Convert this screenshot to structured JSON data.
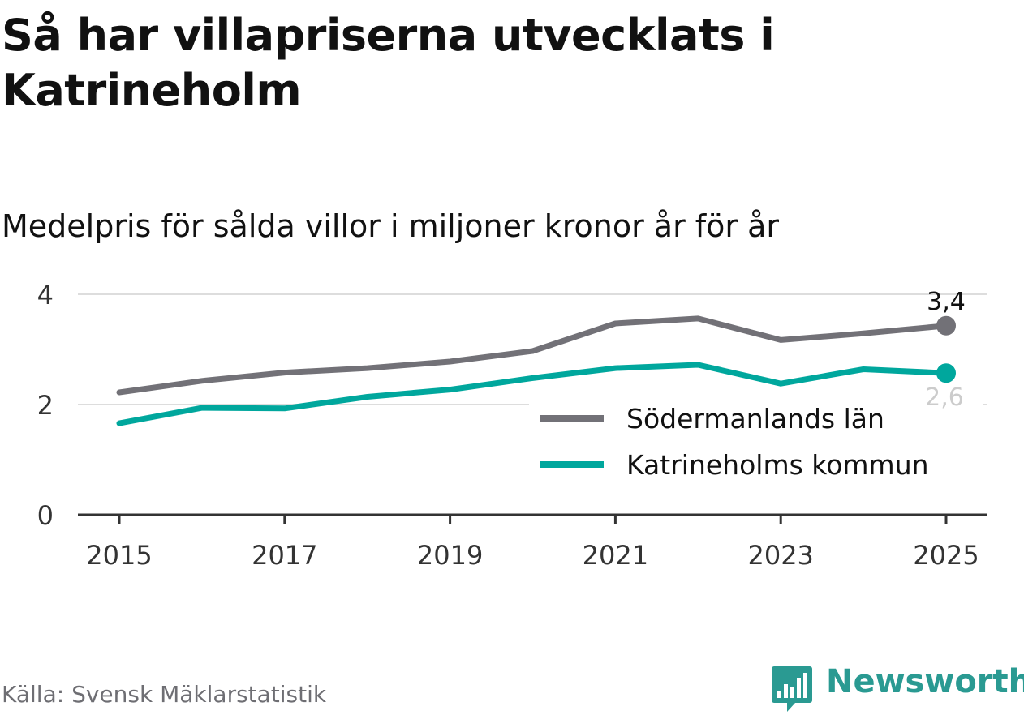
{
  "header": {
    "title": "Så har villapriserna utvecklats i Katrineholm",
    "subtitle": "Medelpris för sålda villor i miljoner kronor år för år"
  },
  "footer": {
    "source": "Källa: Svensk Mäklarstatistik",
    "brand": "Newsworthy"
  },
  "icons": {
    "brand_logo": "bar-chart-speech-bubble-icon"
  },
  "colors": {
    "series_1": "#727177",
    "series_2": "#00a79d",
    "grid": "#dddddd",
    "axis": "#333333",
    "text": "#111111",
    "muted": "#6e6e73",
    "brand": "#2a9a92"
  },
  "chart_data": {
    "type": "line",
    "title": "Så har villapriserna utvecklats i Katrineholm",
    "subtitle": "Medelpris för sålda villor i miljoner kronor år för år",
    "xlabel": "",
    "ylabel": "",
    "x": [
      2015,
      2016,
      2017,
      2018,
      2019,
      2020,
      2021,
      2022,
      2023,
      2024,
      2025
    ],
    "xticks": [
      "2015",
      "2017",
      "2019",
      "2021",
      "2023",
      "2025"
    ],
    "yticks": [
      "0",
      "2",
      "4"
    ],
    "ylim": [
      0,
      4
    ],
    "grid": true,
    "legend_position": "right",
    "series": [
      {
        "name": "Södermanlands län",
        "values": [
          2.22,
          2.43,
          2.58,
          2.66,
          2.78,
          2.97,
          3.47,
          3.56,
          3.17,
          3.29,
          3.43
        ],
        "end_label": "3,4"
      },
      {
        "name": "Katrineholms kommun",
        "values": [
          1.66,
          1.94,
          1.93,
          2.14,
          2.27,
          2.48,
          2.66,
          2.72,
          2.38,
          2.64,
          2.57
        ],
        "end_label": "2,6"
      }
    ]
  }
}
